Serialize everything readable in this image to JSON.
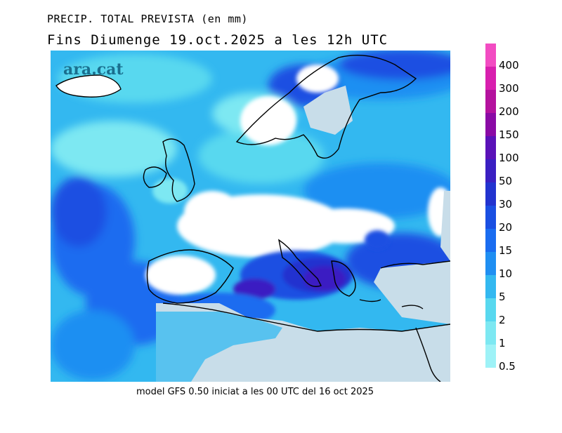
{
  "header": {
    "title_line1": "PRECIP. TOTAL PREVISTA (en mm)",
    "title_line2": "Fins Diumenge 19.oct.2025 a les 12h UTC"
  },
  "brand": {
    "logo_text": "ara.cat"
  },
  "footer": {
    "model_info": "model GFS 0.50 iniciat a les 00 UTC del 16 oct 2025"
  },
  "legend": {
    "unit": "mm",
    "bins": [
      {
        "label": "0.5",
        "color": "#9ef2f7"
      },
      {
        "label": "1",
        "color": "#7de8f2"
      },
      {
        "label": "2",
        "color": "#58d8ef"
      },
      {
        "label": "5",
        "color": "#33b8f0"
      },
      {
        "label": "10",
        "color": "#1f8ff2"
      },
      {
        "label": "15",
        "color": "#1a6cf0"
      },
      {
        "label": "20",
        "color": "#1a4fe2"
      },
      {
        "label": "30",
        "color": "#2233cf"
      },
      {
        "label": "50",
        "color": "#3a1fc2"
      },
      {
        "label": "100",
        "color": "#5a12b8"
      },
      {
        "label": "150",
        "color": "#8a0aa5"
      },
      {
        "label": "200",
        "color": "#b4129e"
      },
      {
        "label": "300",
        "color": "#d81fae"
      },
      {
        "label": "400",
        "color": "#f24cc2"
      }
    ]
  },
  "map": {
    "region": "Europe",
    "colors": {
      "land_dry": "#c8dde9",
      "coastline": "#000000"
    }
  }
}
